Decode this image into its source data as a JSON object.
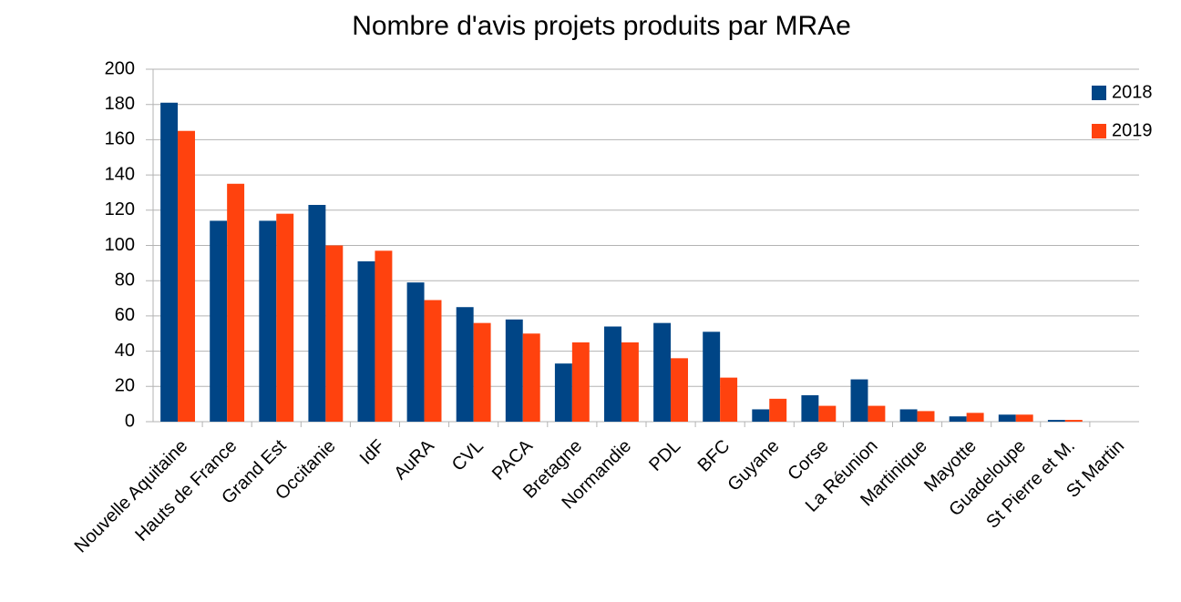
{
  "chart_data": {
    "type": "bar",
    "title": "Nombre d'avis projets produits par MRAe",
    "categories": [
      "Nouvelle Aquitaine",
      "Hauts de France",
      "Grand Est",
      "Occitanie",
      "IdF",
      "AuRA",
      "CVL",
      "PACA",
      "Bretagne",
      "Normandie",
      "PDL",
      "BFC",
      "Guyane",
      "Corse",
      "La Réunion",
      "Martinique",
      "Mayotte",
      "Guadeloupe",
      "St Pierre et M.",
      "St Martin"
    ],
    "series": [
      {
        "name": "2018",
        "color": "#004586",
        "values": [
          181,
          114,
          114,
          123,
          91,
          79,
          65,
          58,
          33,
          54,
          56,
          51,
          7,
          15,
          24,
          7,
          3,
          4,
          1,
          0
        ]
      },
      {
        "name": "2019",
        "color": "#ff420e",
        "values": [
          165,
          135,
          118,
          100,
          97,
          69,
          56,
          50,
          45,
          45,
          36,
          25,
          13,
          9,
          9,
          6,
          5,
          4,
          1,
          0
        ]
      }
    ],
    "ylim": [
      0,
      200
    ],
    "yticks": [
      0,
      20,
      40,
      60,
      80,
      100,
      120,
      140,
      160,
      180,
      200
    ],
    "grid": true,
    "legend": "right"
  }
}
